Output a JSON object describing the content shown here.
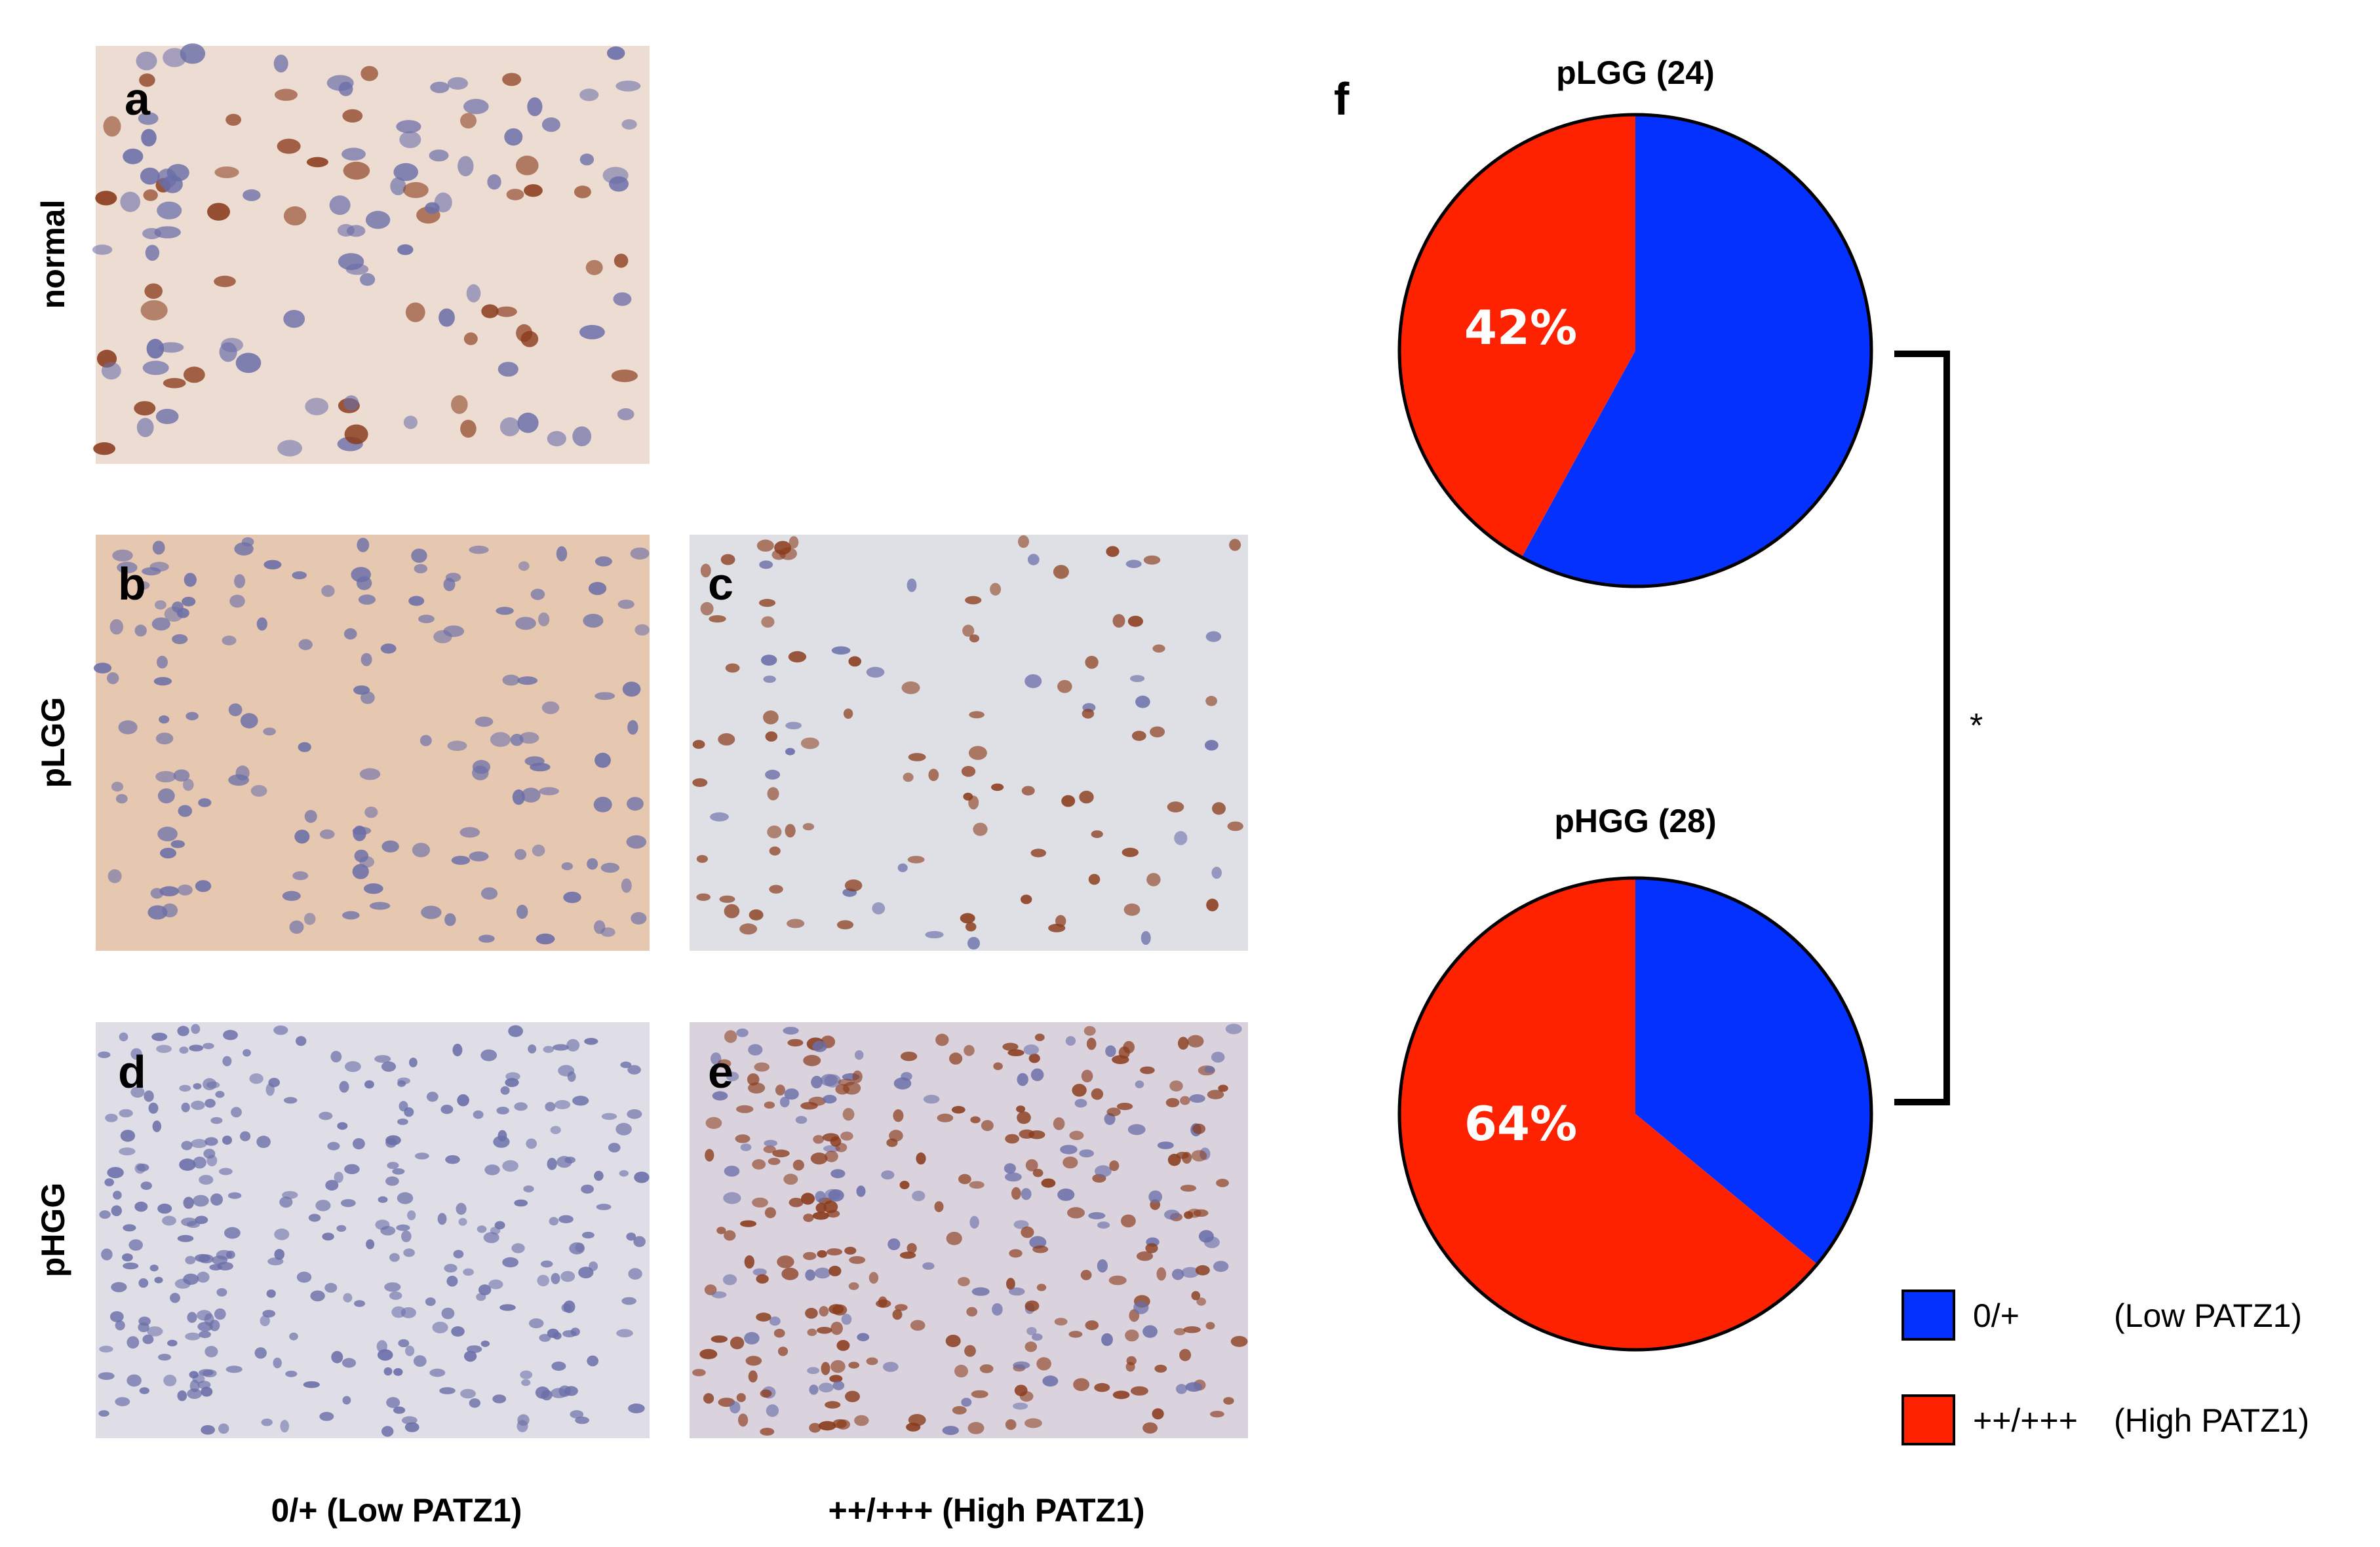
{
  "panels": {
    "a": {
      "letter": "a"
    },
    "b": {
      "letter": "b"
    },
    "c": {
      "letter": "c"
    },
    "d": {
      "letter": "d"
    },
    "e": {
      "letter": "e"
    },
    "f": {
      "letter": "f"
    }
  },
  "row_labels": [
    "normal",
    "pLGG",
    "pHGG"
  ],
  "column_labels": [
    "0/+ (Low PATZ1)",
    "++/+++ (High PATZ1)"
  ],
  "significance_marker": "*",
  "colors": {
    "low": "#0531ff",
    "high": "#ff2200",
    "tissue_normal_bg": "#eddcd2",
    "tissue_plgg_low_bg": "#e6c7b0",
    "tissue_plgg_high_bg": "#dfe0e6",
    "tissue_phgg_low_bg": "#dfdde6",
    "tissue_phgg_high_bg": "#dad2dd",
    "stain_brown": "#8a3b1b",
    "stain_blue": "#6a6ea8"
  },
  "chart_data": [
    {
      "type": "pie",
      "title": "pLGG (24)",
      "series": [
        {
          "name": "0/+ (Low PATZ1)",
          "value": 58
        },
        {
          "name": "++/+++ (High PATZ1)",
          "value": 42
        }
      ],
      "data_labels": [
        "",
        "42%"
      ]
    },
    {
      "type": "pie",
      "title": "pHGG (28)",
      "series": [
        {
          "name": "0/+ (Low PATZ1)",
          "value": 36
        },
        {
          "name": "++/+++ (High PATZ1)",
          "value": 64
        }
      ],
      "data_labels": [
        "",
        "64%"
      ]
    }
  ],
  "legend": [
    {
      "label_a": "0/+",
      "label_b": "(Low PATZ1)",
      "color": "#0531ff"
    },
    {
      "label_a": "++/+++",
      "label_b": "(High PATZ1)",
      "color": "#ff2200"
    }
  ]
}
